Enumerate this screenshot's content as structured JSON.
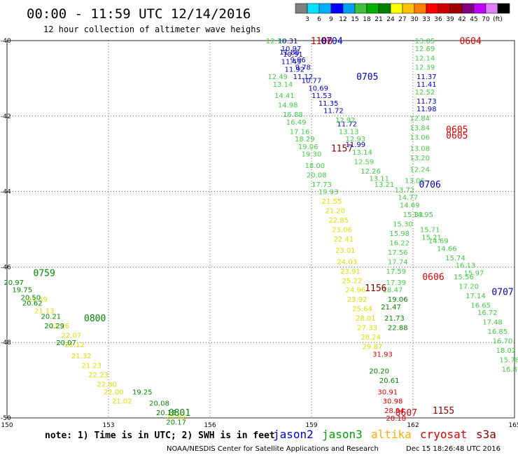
{
  "header": {
    "title": "00:00 - 11:59 UTC 12/14/2016",
    "subtitle": "12 hour collection of altimeter wave heighs"
  },
  "colorbar": {
    "colors": [
      "#808080",
      "#00e0ff",
      "#00b0ff",
      "#0000ff",
      "#00a0f0",
      "#40c040",
      "#00b000",
      "#008000",
      "#ffff00",
      "#ffc000",
      "#ff8000",
      "#ff0000",
      "#d00000",
      "#a00000",
      "#800080",
      "#c000ff",
      "#e080ff",
      "#000000"
    ],
    "labels": [
      "3",
      "6",
      "9",
      "12",
      "15",
      "18",
      "21",
      "24",
      "27",
      "30",
      "33",
      "36",
      "39",
      "42",
      "45",
      "70",
      "(ft)"
    ]
  },
  "footer": {
    "note": "note: 1) Time is in UTC; 2) SWH is in feet",
    "credit": "NOAA/NESDIS Center for Satellite Applications and Research",
    "timestamp": "Dec 15 18:26:48 UTC 2016",
    "missions": [
      {
        "name": "jason2",
        "color": "#0000cc"
      },
      {
        "name": "jason3",
        "color": "#00a000"
      },
      {
        "name": "altika",
        "color": "#ffaa00"
      },
      {
        "name": "cryosat",
        "color": "#dd0000"
      },
      {
        "name": "s3a",
        "color": "#880000"
      }
    ]
  },
  "chart_data": {
    "type": "scatter",
    "xlim": [
      150,
      165
    ],
    "ylim": [
      -50,
      -40
    ],
    "x_ticks": [
      150,
      153,
      156,
      159,
      162,
      165
    ],
    "y_ticks": [
      -40,
      -42,
      -44,
      -46,
      -48,
      -50
    ],
    "x_tick_labels": [
      "150",
      "153",
      "156",
      "159",
      "162",
      "165"
    ],
    "y_tick_labels": [
      "-40",
      "-42",
      "-44",
      "-46",
      "-48",
      "-50"
    ],
    "grid": true,
    "series": [
      {
        "name": "jason2",
        "color": "#0000cc",
        "points": [
          {
            "x": 158.3,
            "y": -40.0,
            "v": "10.31"
          },
          {
            "x": 158.4,
            "y": -40.2,
            "v": "10.97"
          },
          {
            "x": 158.35,
            "y": -40.3,
            "v": "11.86"
          },
          {
            "x": 158.45,
            "y": -40.35,
            "v": "10.91"
          },
          {
            "x": 158.4,
            "y": -40.55,
            "v": "11.49"
          },
          {
            "x": 158.6,
            "y": -40.5,
            "v": "9.96"
          },
          {
            "x": 158.5,
            "y": -40.75,
            "v": "11.92"
          },
          {
            "x": 158.75,
            "y": -40.7,
            "v": "9.78"
          },
          {
            "x": 158.75,
            "y": -40.95,
            "v": "11.12"
          },
          {
            "x": 159.0,
            "y": -41.05,
            "v": "10.77"
          },
          {
            "x": 159.2,
            "y": -41.25,
            "v": "10.69"
          },
          {
            "x": 159.3,
            "y": -41.45,
            "v": "11.53"
          },
          {
            "x": 159.5,
            "y": -41.65,
            "v": "11.35"
          },
          {
            "x": 159.65,
            "y": -41.85,
            "v": "11.72"
          },
          {
            "x": 160.05,
            "y": -42.2,
            "v": "11.72"
          },
          {
            "x": 160.3,
            "y": -42.75,
            "v": "11.99"
          },
          {
            "x": 162.4,
            "y": -40.95,
            "v": "11.37"
          },
          {
            "x": 162.4,
            "y": -41.15,
            "v": "11.41"
          },
          {
            "x": 162.4,
            "y": -41.6,
            "v": "11.73"
          },
          {
            "x": 162.4,
            "y": -41.8,
            "v": "11.98"
          }
        ]
      },
      {
        "name": "jason3",
        "color": "#44cc44",
        "points": [
          {
            "x": 157.95,
            "y": -40.0,
            "v": "12.10"
          },
          {
            "x": 158.0,
            "y": -40.95,
            "v": "12.49"
          },
          {
            "x": 158.15,
            "y": -41.15,
            "v": "13.14"
          },
          {
            "x": 158.2,
            "y": -41.45,
            "v": "14.41"
          },
          {
            "x": 158.3,
            "y": -41.7,
            "v": "14.98"
          },
          {
            "x": 158.45,
            "y": -41.95,
            "v": "16.88"
          },
          {
            "x": 158.55,
            "y": -42.15,
            "v": "16.49"
          },
          {
            "x": 158.65,
            "y": -42.4,
            "v": "17.16"
          },
          {
            "x": 158.8,
            "y": -42.6,
            "v": "18.29"
          },
          {
            "x": 158.9,
            "y": -42.8,
            "v": "19.06"
          },
          {
            "x": 159.0,
            "y": -43.0,
            "v": "19.30"
          },
          {
            "x": 159.1,
            "y": -43.3,
            "v": "18.00"
          },
          {
            "x": 159.15,
            "y": -43.55,
            "v": "20.08"
          },
          {
            "x": 159.3,
            "y": -43.8,
            "v": "17.73"
          },
          {
            "x": 159.5,
            "y": -44.0,
            "v": "19.93"
          },
          {
            "x": 160.0,
            "y": -42.1,
            "v": "12.92"
          },
          {
            "x": 160.1,
            "y": -42.4,
            "v": "13.13"
          },
          {
            "x": 160.3,
            "y": -42.6,
            "v": "12.93"
          },
          {
            "x": 160.5,
            "y": -42.95,
            "v": "13.14"
          },
          {
            "x": 160.55,
            "y": -43.2,
            "v": "12.59"
          },
          {
            "x": 160.75,
            "y": -43.45,
            "v": "12.26"
          },
          {
            "x": 161.0,
            "y": -43.65,
            "v": "13.11"
          },
          {
            "x": 161.15,
            "y": -43.8,
            "v": "13.21"
          },
          {
            "x": 162.35,
            "y": -40.0,
            "v": "13.05"
          },
          {
            "x": 162.35,
            "y": -40.2,
            "v": "12.69"
          },
          {
            "x": 162.35,
            "y": -40.45,
            "v": "12.14"
          },
          {
            "x": 162.35,
            "y": -40.7,
            "v": "12.39"
          },
          {
            "x": 162.35,
            "y": -41.35,
            "v": "12.52"
          },
          {
            "x": 162.2,
            "y": -42.05,
            "v": "12.84"
          },
          {
            "x": 162.2,
            "y": -42.3,
            "v": "13.84"
          },
          {
            "x": 162.2,
            "y": -42.55,
            "v": "13.06"
          },
          {
            "x": 162.2,
            "y": -42.85,
            "v": "13.08"
          },
          {
            "x": 162.2,
            "y": -43.1,
            "v": "13.20"
          },
          {
            "x": 162.2,
            "y": -43.4,
            "v": "12.24"
          },
          {
            "x": 162.05,
            "y": -43.7,
            "v": "13.06"
          },
          {
            "x": 161.75,
            "y": -43.95,
            "v": "13.72"
          },
          {
            "x": 161.85,
            "y": -44.15,
            "v": "14.77"
          },
          {
            "x": 161.9,
            "y": -44.35,
            "v": "14.69"
          },
          {
            "x": 162.0,
            "y": -44.6,
            "v": "15.33"
          },
          {
            "x": 162.3,
            "y": -44.6,
            "v": "14.95"
          },
          {
            "x": 162.5,
            "y": -45.0,
            "v": "15.71"
          },
          {
            "x": 162.55,
            "y": -45.2,
            "v": "15.21"
          },
          {
            "x": 162.75,
            "y": -45.3,
            "v": "14.69"
          },
          {
            "x": 163.0,
            "y": -45.5,
            "v": "14.66"
          },
          {
            "x": 163.25,
            "y": -45.75,
            "v": "15.74"
          },
          {
            "x": 163.55,
            "y": -45.95,
            "v": "16.13"
          },
          {
            "x": 163.8,
            "y": -46.15,
            "v": "15.97"
          },
          {
            "x": 161.7,
            "y": -44.85,
            "v": "15.30"
          },
          {
            "x": 161.6,
            "y": -45.1,
            "v": "15.98"
          },
          {
            "x": 161.6,
            "y": -45.35,
            "v": "16.22"
          },
          {
            "x": 161.55,
            "y": -45.6,
            "v": "17.56"
          },
          {
            "x": 161.55,
            "y": -45.85,
            "v": "17.74"
          },
          {
            "x": 161.5,
            "y": -46.1,
            "v": "17.59"
          },
          {
            "x": 161.5,
            "y": -46.4,
            "v": "17.39"
          },
          {
            "x": 161.4,
            "y": -46.6,
            "v": "18.47"
          },
          {
            "x": 163.5,
            "y": -46.25,
            "v": "15.56"
          },
          {
            "x": 163.65,
            "y": -46.5,
            "v": "17.20"
          },
          {
            "x": 163.85,
            "y": -46.75,
            "v": "17.14"
          },
          {
            "x": 164.0,
            "y": -47.0,
            "v": "16.65"
          },
          {
            "x": 164.2,
            "y": -47.2,
            "v": "16.72"
          },
          {
            "x": 164.35,
            "y": -47.45,
            "v": "17.48"
          },
          {
            "x": 164.5,
            "y": -47.7,
            "v": "16.85"
          },
          {
            "x": 164.65,
            "y": -47.95,
            "v": "16.70"
          },
          {
            "x": 164.75,
            "y": -48.2,
            "v": "18.02"
          },
          {
            "x": 164.85,
            "y": -48.45,
            "v": "15.78"
          },
          {
            "x": 164.85,
            "y": -48.7,
            "v": "16.8"
          }
        ]
      },
      {
        "name": "altika",
        "color": "#dddd00",
        "points": [
          {
            "x": 159.6,
            "y": -44.25,
            "v": "21.55"
          },
          {
            "x": 159.7,
            "y": -44.5,
            "v": "21.20"
          },
          {
            "x": 159.8,
            "y": -44.75,
            "v": "22.85"
          },
          {
            "x": 159.9,
            "y": -45.0,
            "v": "23.06"
          },
          {
            "x": 159.95,
            "y": -45.25,
            "v": "22.41"
          },
          {
            "x": 160.0,
            "y": -45.55,
            "v": "23.01"
          },
          {
            "x": 160.05,
            "y": -45.85,
            "v": "24.03"
          },
          {
            "x": 160.15,
            "y": -46.1,
            "v": "23.91"
          },
          {
            "x": 160.2,
            "y": -46.35,
            "v": "25.22"
          },
          {
            "x": 160.3,
            "y": -46.6,
            "v": "24.96"
          },
          {
            "x": 160.35,
            "y": -46.85,
            "v": "23.92"
          },
          {
            "x": 160.5,
            "y": -47.1,
            "v": "25.64"
          },
          {
            "x": 160.6,
            "y": -47.35,
            "v": "28.01"
          },
          {
            "x": 160.65,
            "y": -47.6,
            "v": "27.33"
          },
          {
            "x": 160.75,
            "y": -47.85,
            "v": "28.24"
          },
          {
            "x": 160.8,
            "y": -48.1,
            "v": "29.87"
          },
          {
            "x": 150.9,
            "y": -46.85,
            "v": "21.59"
          },
          {
            "x": 151.1,
            "y": -47.15,
            "v": "21.13"
          },
          {
            "x": 151.55,
            "y": -47.55,
            "v": "21.16"
          },
          {
            "x": 151.9,
            "y": -47.8,
            "v": "22.07"
          },
          {
            "x": 152.0,
            "y": -48.05,
            "v": "21.12"
          },
          {
            "x": 152.2,
            "y": -48.35,
            "v": "21.32"
          },
          {
            "x": 152.5,
            "y": -48.6,
            "v": "21.23"
          },
          {
            "x": 152.7,
            "y": -48.85,
            "v": "22.23"
          },
          {
            "x": 152.95,
            "y": -49.1,
            "v": "22.80"
          },
          {
            "x": 153.15,
            "y": -49.3,
            "v": "22.00"
          },
          {
            "x": 153.4,
            "y": -49.55,
            "v": "21.02"
          },
          {
            "x": 155.0,
            "y": -49.95,
            "v": "21.62"
          }
        ]
      },
      {
        "name": "cryosat",
        "color": "#dd0000",
        "points": [
          {
            "x": 161.1,
            "y": -48.3,
            "v": "31.93"
          },
          {
            "x": 161.25,
            "y": -49.3,
            "v": "30.91"
          },
          {
            "x": 161.4,
            "y": -49.55,
            "v": "30.98"
          },
          {
            "x": 161.45,
            "y": -49.8,
            "v": "28.94"
          },
          {
            "x": 161.5,
            "y": -50.0,
            "v": "28.18"
          }
        ]
      },
      {
        "name": "s3a",
        "color": "#008800",
        "points": [
          {
            "x": 150.2,
            "y": -46.4,
            "v": "20.97"
          },
          {
            "x": 150.45,
            "y": -46.6,
            "v": "19.75"
          },
          {
            "x": 150.7,
            "y": -46.8,
            "v": "20.50"
          },
          {
            "x": 150.75,
            "y": -46.95,
            "v": "20.62"
          },
          {
            "x": 151.3,
            "y": -47.3,
            "v": "20.21"
          },
          {
            "x": 151.4,
            "y": -47.55,
            "v": "20.29"
          },
          {
            "x": 151.75,
            "y": -48.0,
            "v": "20.07"
          },
          {
            "x": 154.0,
            "y": -49.3,
            "v": "19.25"
          },
          {
            "x": 154.5,
            "y": -49.6,
            "v": "20.08"
          },
          {
            "x": 154.7,
            "y": -49.85,
            "v": "20.18"
          },
          {
            "x": 155.0,
            "y": -50.1,
            "v": "20.17"
          },
          {
            "x": 161.0,
            "y": -48.75,
            "v": "20.20"
          },
          {
            "x": 161.3,
            "y": -49.0,
            "v": "20.61"
          },
          {
            "x": 161.35,
            "y": -47.05,
            "v": "21.47"
          },
          {
            "x": 161.45,
            "y": -47.35,
            "v": "21.73"
          },
          {
            "x": 161.55,
            "y": -47.6,
            "v": "22.88"
          },
          {
            "x": 161.55,
            "y": -46.85,
            "v": "19.06"
          }
        ]
      }
    ],
    "time_labels": [
      {
        "x": 159.3,
        "y": -40.0,
        "text": "1108",
        "color": "#cc0000"
      },
      {
        "x": 159.6,
        "y": -40.0,
        "text": "0704",
        "color": "#0000cc"
      },
      {
        "x": 163.7,
        "y": -40.0,
        "text": "0604",
        "color": "#dd0000"
      },
      {
        "x": 160.65,
        "y": -40.95,
        "text": "0705",
        "color": "#0000cc"
      },
      {
        "x": 163.3,
        "y": -42.35,
        "text": "0605",
        "color": "#dd0000"
      },
      {
        "x": 163.3,
        "y": -42.5,
        "text": "0605",
        "color": "#dd0000"
      },
      {
        "x": 159.9,
        "y": -42.85,
        "text": "1157",
        "color": "#880000"
      },
      {
        "x": 162.5,
        "y": -43.8,
        "text": "0706",
        "color": "#0000cc"
      },
      {
        "x": 162.6,
        "y": -46.25,
        "text": "0606",
        "color": "#dd0000"
      },
      {
        "x": 160.9,
        "y": -46.55,
        "text": "1156",
        "color": "#880000"
      },
      {
        "x": 164.65,
        "y": -46.65,
        "text": "0707",
        "color": "#0000cc"
      },
      {
        "x": 151.1,
        "y": -46.15,
        "text": "0759",
        "color": "#008800"
      },
      {
        "x": 152.6,
        "y": -47.35,
        "text": "0800",
        "color": "#008800"
      },
      {
        "x": 155.1,
        "y": -49.85,
        "text": "0801",
        "color": "#008800"
      },
      {
        "x": 161.8,
        "y": -49.85,
        "text": "0607",
        "color": "#dd0000"
      },
      {
        "x": 162.9,
        "y": -49.8,
        "text": "1155",
        "color": "#880000"
      }
    ]
  }
}
